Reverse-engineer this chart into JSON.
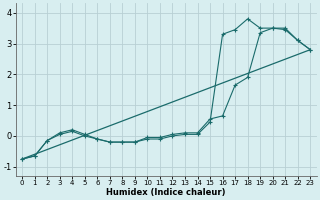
{
  "xlabel": "Humidex (Indice chaleur)",
  "bg_color": "#d8eef0",
  "grid_color": "#b8d0d4",
  "line_color": "#1a6b6b",
  "xlim": [
    -0.5,
    23.5
  ],
  "ylim": [
    -1.3,
    4.3
  ],
  "xticks": [
    0,
    1,
    2,
    3,
    4,
    5,
    6,
    7,
    8,
    9,
    10,
    11,
    12,
    13,
    14,
    15,
    16,
    17,
    18,
    19,
    20,
    21,
    22,
    23
  ],
  "yticks": [
    -1,
    0,
    1,
    2,
    3,
    4
  ],
  "series1_x": [
    0,
    1,
    2,
    3,
    4,
    5,
    6,
    7,
    8,
    9,
    10,
    11,
    12,
    13,
    14,
    15,
    16,
    17,
    18,
    19,
    20,
    21,
    22,
    23
  ],
  "series1_y": [
    -0.75,
    -0.65,
    -0.15,
    0.05,
    0.15,
    0.0,
    -0.1,
    -0.2,
    -0.2,
    -0.2,
    -0.05,
    -0.05,
    0.05,
    0.1,
    0.1,
    0.55,
    0.65,
    1.65,
    1.9,
    3.35,
    3.5,
    3.5,
    3.1,
    2.8
  ],
  "series2_x": [
    0,
    1,
    2,
    3,
    4,
    5,
    6,
    7,
    8,
    9,
    10,
    11,
    12,
    13,
    14,
    15,
    16,
    17,
    18,
    19,
    20,
    21,
    22,
    23
  ],
  "series2_y": [
    -0.75,
    -0.65,
    -0.15,
    0.1,
    0.2,
    0.05,
    -0.1,
    -0.2,
    -0.2,
    -0.2,
    -0.1,
    -0.1,
    0.0,
    0.05,
    0.05,
    0.45,
    3.3,
    3.45,
    3.8,
    3.5,
    3.5,
    3.45,
    3.1,
    2.8
  ],
  "series3_x": [
    0,
    23
  ],
  "series3_y": [
    -0.75,
    2.8
  ]
}
